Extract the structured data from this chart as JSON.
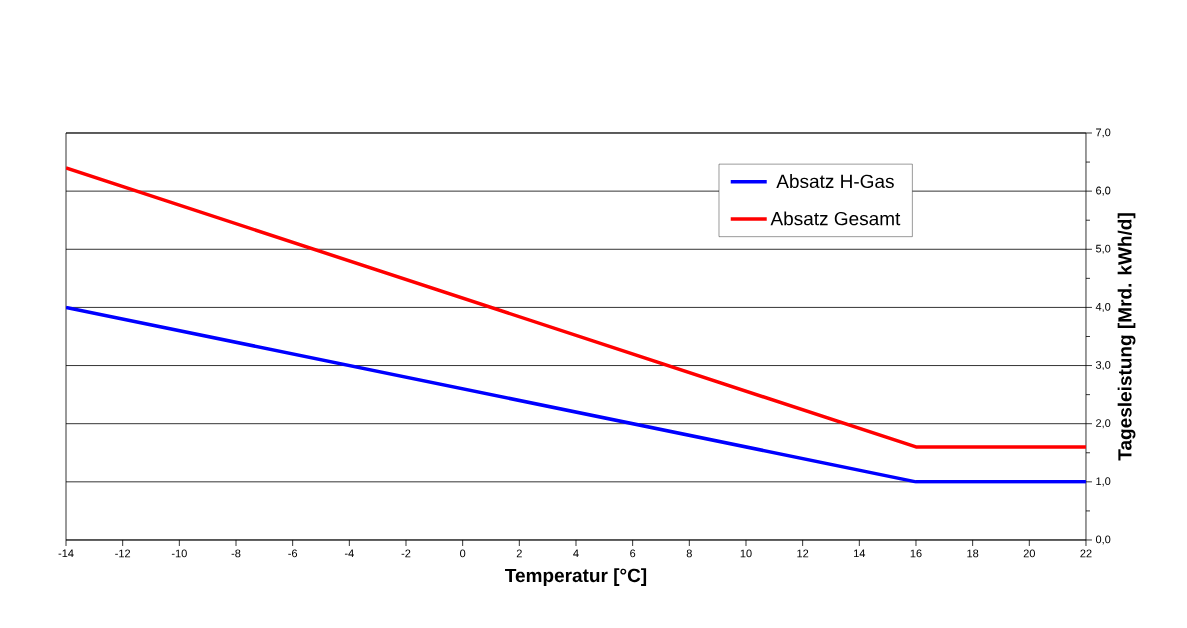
{
  "chart_data": {
    "type": "line",
    "xlabel": "Temperatur [°C]",
    "ylabel": "Tagesleistung [Mrd. kWh/d]",
    "xlim": [
      -14,
      22
    ],
    "xticks": [
      -14,
      -12,
      -10,
      -8,
      -6,
      -4,
      -2,
      0,
      2,
      4,
      6,
      8,
      10,
      12,
      14,
      16,
      18,
      20,
      22
    ],
    "ylim": [
      0,
      7
    ],
    "yticks": [
      {
        "value": 0,
        "label": "0,0"
      },
      {
        "value": 1,
        "label": "1,0"
      },
      {
        "value": 2,
        "label": "2,0"
      },
      {
        "value": 3,
        "label": "3,0"
      },
      {
        "value": 4,
        "label": "4,0"
      },
      {
        "value": 5,
        "label": "5,0"
      },
      {
        "value": 6,
        "label": "6,0"
      },
      {
        "value": 7,
        "label": "7,0"
      }
    ],
    "grid": "y",
    "legend": "top right",
    "marker": "none",
    "line_style": "solid",
    "series": [
      {
        "name": "Absatz H-Gas",
        "color": "#0000ff",
        "x": [
          -14,
          16,
          18,
          20,
          22
        ],
        "values": [
          4.0,
          1.0,
          1.0,
          1.0,
          1.0
        ]
      },
      {
        "name": "Absatz Gesamt",
        "color": "#ff0000",
        "x": [
          -14,
          16,
          18,
          20,
          22
        ],
        "values": [
          6.4,
          1.6,
          1.6,
          1.6,
          1.6
        ]
      }
    ]
  }
}
